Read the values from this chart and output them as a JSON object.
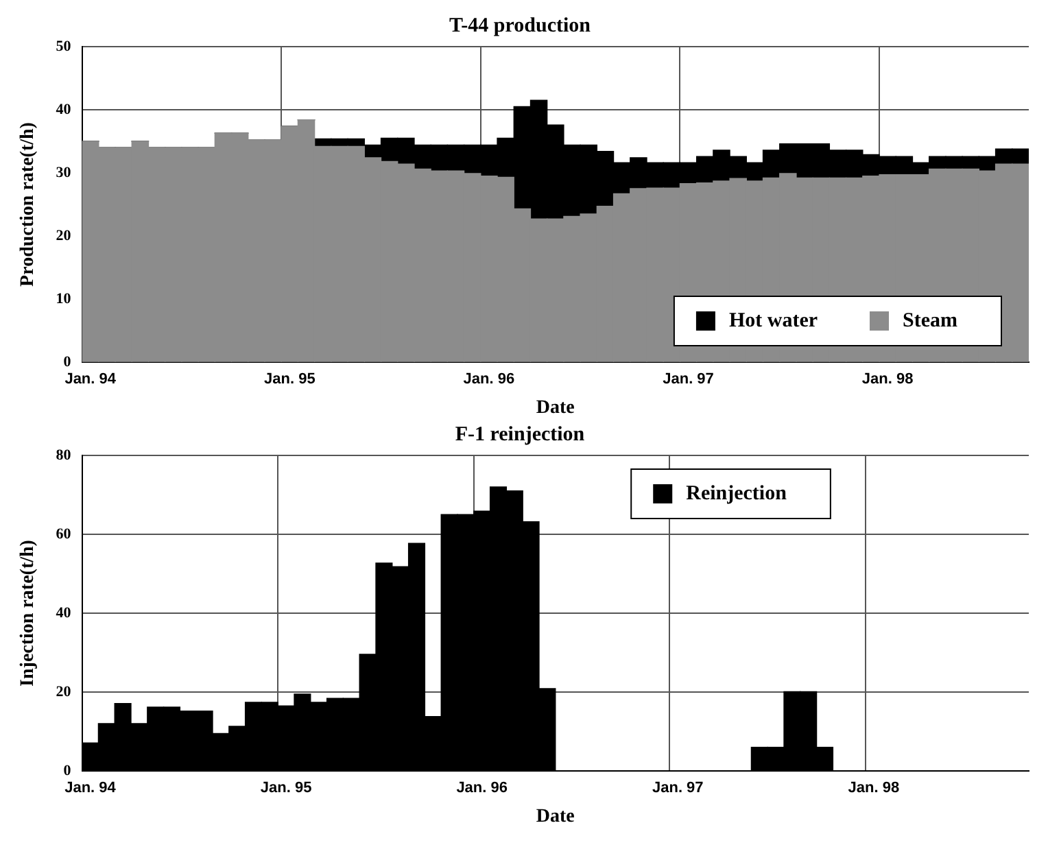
{
  "chart_data": [
    {
      "type": "bar",
      "title": "T-44 production",
      "xlabel": "Date",
      "ylabel": "Production rate(t/h)",
      "stacked": true,
      "grid": true,
      "legend": "bottom right",
      "categories": [
        "Jan. 94",
        null,
        null,
        null,
        null,
        null,
        null,
        null,
        null,
        null,
        null,
        null,
        "Jan. 95",
        null,
        null,
        null,
        null,
        null,
        null,
        null,
        null,
        null,
        null,
        null,
        "Jan. 96",
        null,
        null,
        null,
        null,
        null,
        null,
        null,
        null,
        null,
        null,
        null,
        "Jan. 97",
        null,
        null,
        null,
        null,
        null,
        null,
        null,
        null,
        null,
        null,
        null,
        "Jan. 98",
        null,
        null,
        null,
        null,
        null,
        null,
        null,
        null
      ],
      "ylim": [
        0,
        50
      ],
      "yticks": [
        0,
        10,
        20,
        30,
        40,
        50
      ],
      "series": [
        {
          "name": "Steam",
          "color": "#8c8c8c",
          "values": [
            35,
            34,
            34,
            35,
            34,
            34,
            34,
            34,
            36.3,
            36.3,
            35.2,
            35.2,
            37.4,
            38.4,
            34.2,
            34.2,
            34.2,
            32.4,
            31.8,
            31.4,
            30.6,
            30.3,
            30.3,
            29.9,
            29.5,
            29.3,
            24.3,
            22.7,
            22.7,
            23.1,
            23.5,
            24.7,
            26.7,
            27.5,
            27.6,
            27.6,
            28.3,
            28.4,
            28.7,
            29.1,
            28.7,
            29.2,
            29.9,
            29.2,
            29.2,
            29.2,
            29.2,
            29.5,
            29.7,
            29.7,
            29.7,
            30.6,
            30.6,
            30.6,
            30.3,
            31.4,
            31.4
          ]
        },
        {
          "name": "Hot water",
          "color": "#000000",
          "values": [
            0,
            0,
            0,
            0,
            0,
            0,
            0,
            0,
            0,
            0,
            0,
            0,
            0,
            0,
            1.2,
            1.2,
            1.2,
            2.0,
            3.7,
            4.1,
            3.8,
            4.1,
            4.1,
            4.5,
            4.9,
            6.2,
            16.2,
            18.8,
            14.9,
            11.3,
            10.9,
            8.7,
            4.9,
            4.9,
            4.0,
            4.0,
            3.3,
            4.2,
            4.9,
            3.5,
            2.9,
            4.4,
            4.7,
            5.4,
            5.4,
            4.4,
            4.4,
            3.4,
            2.9,
            2.9,
            1.9,
            2.0,
            2.0,
            2.0,
            2.3,
            2.4,
            2.4
          ]
        }
      ]
    },
    {
      "type": "bar",
      "title": "F-1 reinjection",
      "xlabel": "Date",
      "ylabel": "Injection rate(t/h)",
      "grid": true,
      "legend": "top right",
      "categories": [
        "Jan. 94",
        null,
        null,
        null,
        null,
        null,
        null,
        null,
        null,
        null,
        null,
        null,
        "Jan. 95",
        null,
        null,
        null,
        null,
        null,
        null,
        null,
        null,
        null,
        null,
        null,
        "Jan. 96",
        null,
        null,
        null,
        null,
        null,
        null,
        null,
        null,
        null,
        null,
        null,
        "Jan. 97",
        null,
        null,
        null,
        null,
        null,
        null,
        null,
        null,
        null,
        null,
        null,
        "Jan. 98",
        null,
        null,
        null,
        null,
        null,
        null,
        null,
        null,
        null
      ],
      "ylim": [
        0,
        80
      ],
      "yticks": [
        0,
        20,
        40,
        60,
        80
      ],
      "series": [
        {
          "name": "Reinjection",
          "color": "#000000",
          "values": [
            7.1,
            12.0,
            17.1,
            12.0,
            16.2,
            16.2,
            15.2,
            15.2,
            9.5,
            11.3,
            17.4,
            17.4,
            16.5,
            19.5,
            17.4,
            18.4,
            18.4,
            29.6,
            52.7,
            51.8,
            57.7,
            13.8,
            65.0,
            65.0,
            65.9,
            72.0,
            71.0,
            63.2,
            20.9,
            0,
            0,
            0,
            0,
            0,
            0,
            0,
            0,
            0,
            0,
            0,
            0,
            6.0,
            6.0,
            20.1,
            20.1,
            6.0,
            0,
            0,
            0,
            0,
            0,
            0,
            0,
            0,
            0,
            0,
            0,
            0
          ]
        }
      ]
    }
  ]
}
